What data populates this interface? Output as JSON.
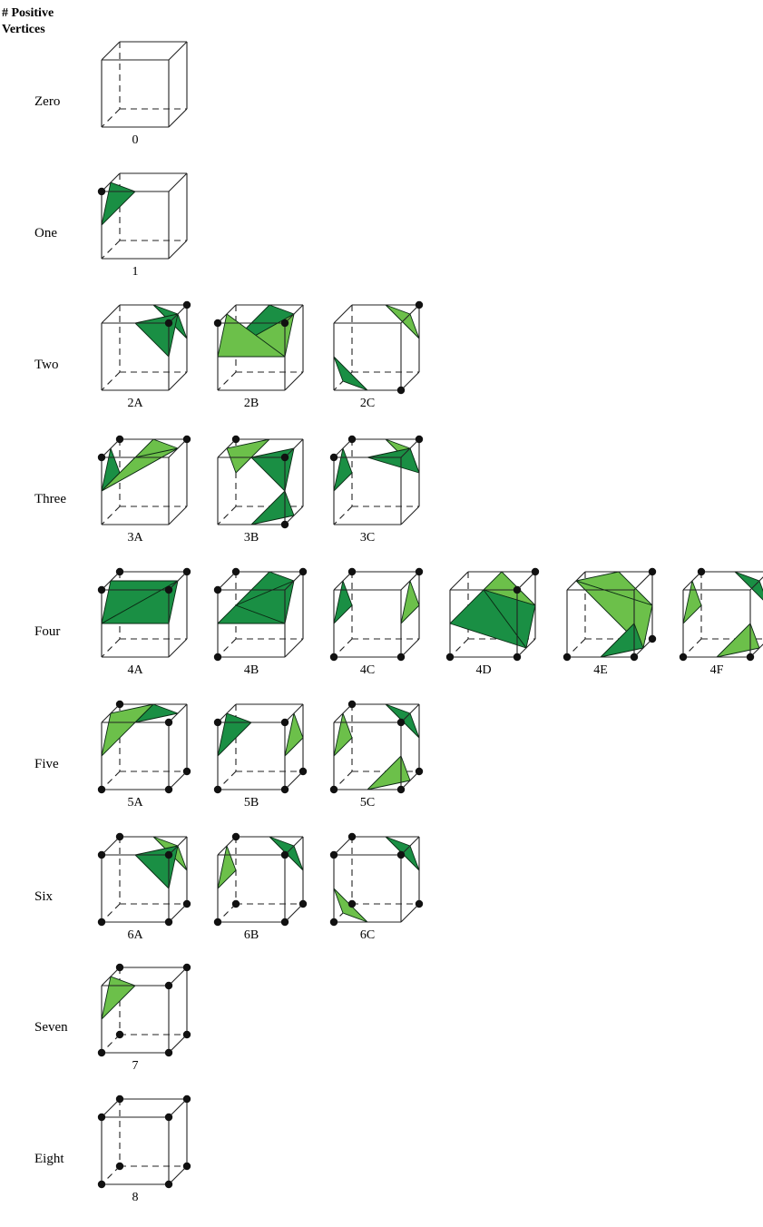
{
  "header": {
    "line1": "# Positive",
    "line2": "Vertices"
  },
  "colors": {
    "dark_green": "#1a8f44",
    "light_green": "#6cc04a",
    "vertex": "#111111",
    "edge": "#222222"
  },
  "rows": [
    {
      "label": "Zero",
      "cases": [
        {
          "id": "0",
          "vertices": []
        }
      ]
    },
    {
      "label": "One",
      "cases": [
        {
          "id": "1",
          "vertices": [
            "a"
          ]
        }
      ]
    },
    {
      "label": "Two",
      "cases": [
        {
          "id": "2A",
          "vertices": [
            "B",
            "b"
          ]
        },
        {
          "id": "2B",
          "vertices": [
            "a",
            "b"
          ]
        },
        {
          "id": "2C",
          "vertices": [
            "B",
            "c"
          ]
        }
      ]
    },
    {
      "label": "Three",
      "cases": [
        {
          "id": "3A",
          "vertices": [
            "A",
            "B",
            "a"
          ]
        },
        {
          "id": "3B",
          "vertices": [
            "A",
            "b",
            "c"
          ]
        },
        {
          "id": "3C",
          "vertices": [
            "A",
            "B",
            "a"
          ]
        }
      ]
    },
    {
      "label": "Four",
      "cases": [
        {
          "id": "4A",
          "vertices": [
            "A",
            "B",
            "a",
            "b"
          ]
        },
        {
          "id": "4B",
          "vertices": [
            "A",
            "B",
            "a",
            "d"
          ]
        },
        {
          "id": "4C",
          "vertices": [
            "A",
            "B",
            "c",
            "d"
          ]
        },
        {
          "id": "4D",
          "vertices": [
            "B",
            "b",
            "c",
            "d"
          ]
        },
        {
          "id": "4E",
          "vertices": [
            "B",
            "C",
            "c",
            "d"
          ]
        },
        {
          "id": "4F",
          "vertices": [
            "A",
            "B",
            "c",
            "d"
          ]
        }
      ]
    },
    {
      "label": "Five",
      "cases": [
        {
          "id": "5A",
          "vertices": [
            "A",
            "b",
            "C",
            "c",
            "d"
          ]
        },
        {
          "id": "5B",
          "vertices": [
            "a",
            "b",
            "C",
            "c",
            "d"
          ]
        },
        {
          "id": "5C",
          "vertices": [
            "A",
            "b",
            "C",
            "c",
            "d"
          ]
        }
      ]
    },
    {
      "label": "Six",
      "cases": [
        {
          "id": "6A",
          "vertices": [
            "A",
            "a",
            "b",
            "C",
            "c",
            "d"
          ]
        },
        {
          "id": "6B",
          "vertices": [
            "A",
            "b",
            "C",
            "c",
            "d",
            "D"
          ]
        },
        {
          "id": "6C",
          "vertices": [
            "A",
            "a",
            "b",
            "C",
            "d",
            "D"
          ]
        }
      ]
    },
    {
      "label": "Seven",
      "cases": [
        {
          "id": "7",
          "vertices": [
            "A",
            "B",
            "b",
            "C",
            "c",
            "d",
            "D"
          ]
        }
      ]
    },
    {
      "label": "Eight",
      "cases": [
        {
          "id": "8",
          "vertices": [
            "A",
            "B",
            "a",
            "b",
            "C",
            "c",
            "d",
            "D"
          ]
        }
      ]
    }
  ]
}
